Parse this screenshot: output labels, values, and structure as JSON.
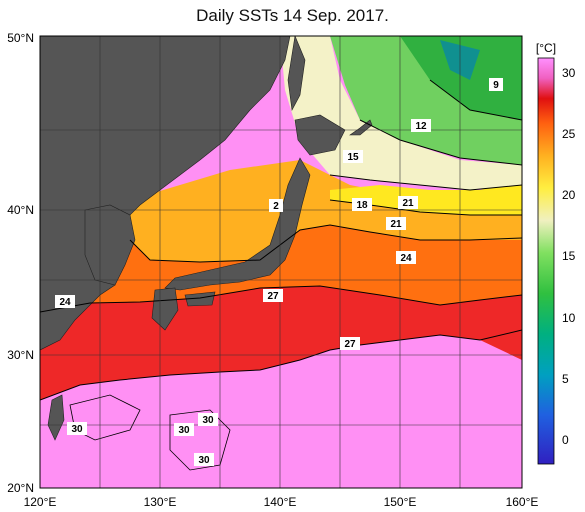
{
  "title": "Daily SSTs 14 Sep. 2017.",
  "map": {
    "lat_labels": [
      "50°N",
      "40°N",
      "30°N",
      "20°N"
    ],
    "lon_labels": [
      "120°E",
      "130°E",
      "140°E",
      "150°E",
      "160°E"
    ],
    "lat_range": [
      20,
      50
    ],
    "lon_range": [
      120,
      160
    ],
    "land_color": "#555555",
    "contour_labels": [
      "9",
      "12",
      "15",
      "18",
      "21",
      "21",
      "2",
      "24",
      "24",
      "27",
      "27",
      "30",
      "30",
      "30",
      "30"
    ]
  },
  "colorbar": {
    "unit": "[°C]",
    "ticks": [
      "30",
      "25",
      "20",
      "15",
      "10",
      "5",
      "0"
    ],
    "colors": [
      "#ff80ff",
      "#f04040",
      "#ff8000",
      "#ffe000",
      "#f5f5c0",
      "#40c840",
      "#00a0a0",
      "#3030d0"
    ]
  }
}
